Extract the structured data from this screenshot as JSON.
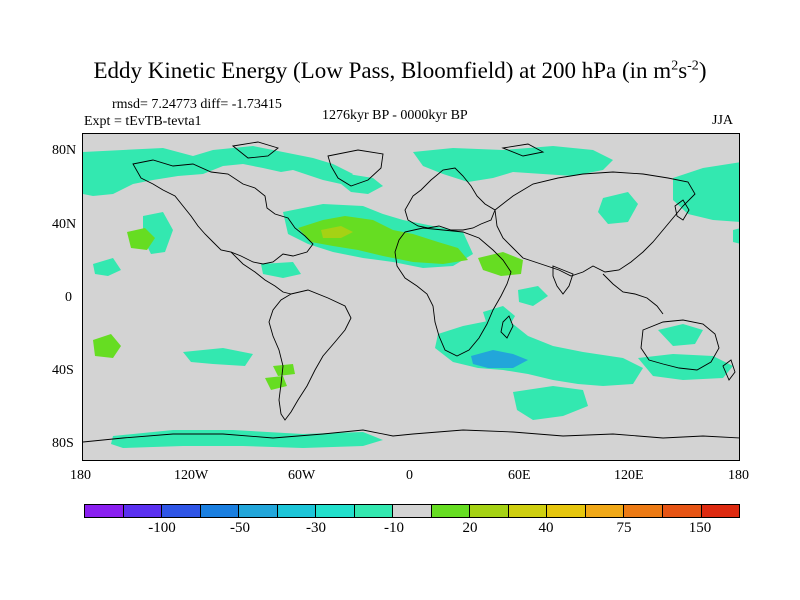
{
  "title": {
    "main": "Eddy Kinetic Energy (Low Pass, Bloomfield) at 200 hPa (in m",
    "sup1": "2",
    "mid": "s",
    "sup2": "-2",
    "end": ")"
  },
  "stats": "rmsd= 7.24773 diff= -1.73415",
  "experiment": "Expt = tEvTB-tevta1",
  "period": "1276kyr BP - 0000kyr BP",
  "season": "JJA",
  "map": {
    "land_color": "#d3d3d3",
    "lat_labels": [
      "80N",
      "40N",
      "0",
      "40S",
      "80S"
    ],
    "lon_labels": [
      "180",
      "120W",
      "60W",
      "0",
      "60E",
      "120E",
      "180"
    ]
  },
  "colorbar": {
    "colors": [
      "#8a1ff0",
      "#5a30f0",
      "#2f55e6",
      "#1a7fe0",
      "#22a6da",
      "#1cc5d8",
      "#22e0cc",
      "#33e8b0",
      "#d3d3d3",
      "#66dd22",
      "#a5d214",
      "#cfcf10",
      "#e6c60e",
      "#f0a818",
      "#ec7a14",
      "#e65414",
      "#dd2a10"
    ],
    "labels": [
      "-100",
      "-50",
      "-30",
      "-10",
      "20",
      "40",
      "75",
      "150"
    ]
  },
  "palette": {
    "cyan": "#33e8b0",
    "teal": "#22e0cc",
    "lightblue": "#22a6da",
    "green": "#66dd22"
  }
}
